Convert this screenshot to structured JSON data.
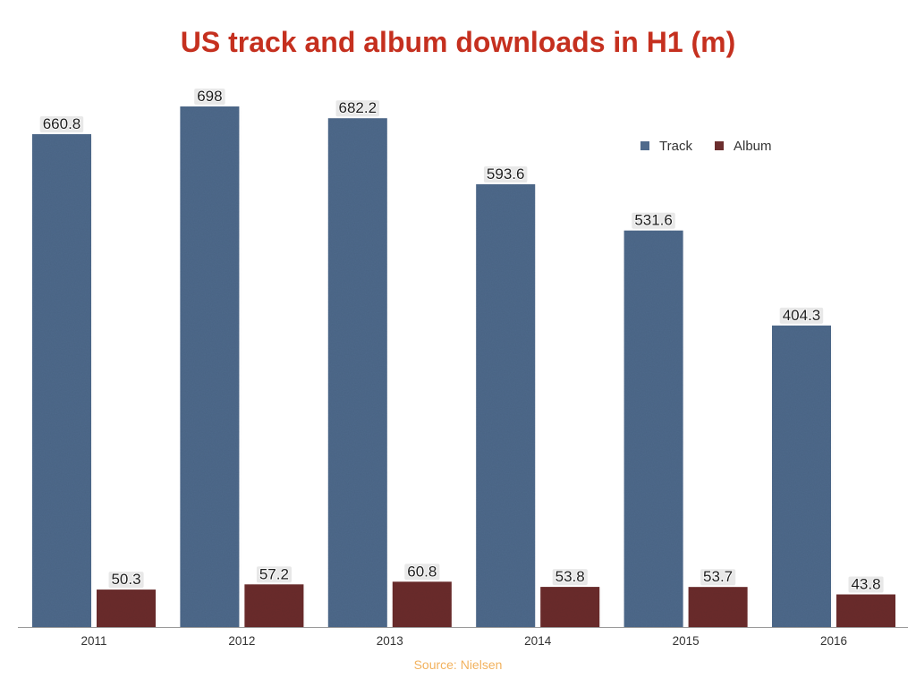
{
  "source": "Source: Nielsen",
  "colors": {
    "title": "#c5301f",
    "source": "#f2b25e"
  },
  "chart_data": {
    "type": "bar",
    "title": "US track and album downloads in H1 (m)",
    "categories": [
      "2011",
      "2012",
      "2013",
      "2014",
      "2015",
      "2016"
    ],
    "series": [
      {
        "name": "Track",
        "values": [
          660.8,
          698,
          682.2,
          593.6,
          531.6,
          404.3
        ],
        "color": "#4f6a8c"
      },
      {
        "name": "Album",
        "values": [
          50.3,
          57.2,
          60.8,
          53.8,
          53.7,
          43.8
        ],
        "color": "#6c2e2e"
      }
    ],
    "grid": false,
    "legend": "top-right"
  }
}
